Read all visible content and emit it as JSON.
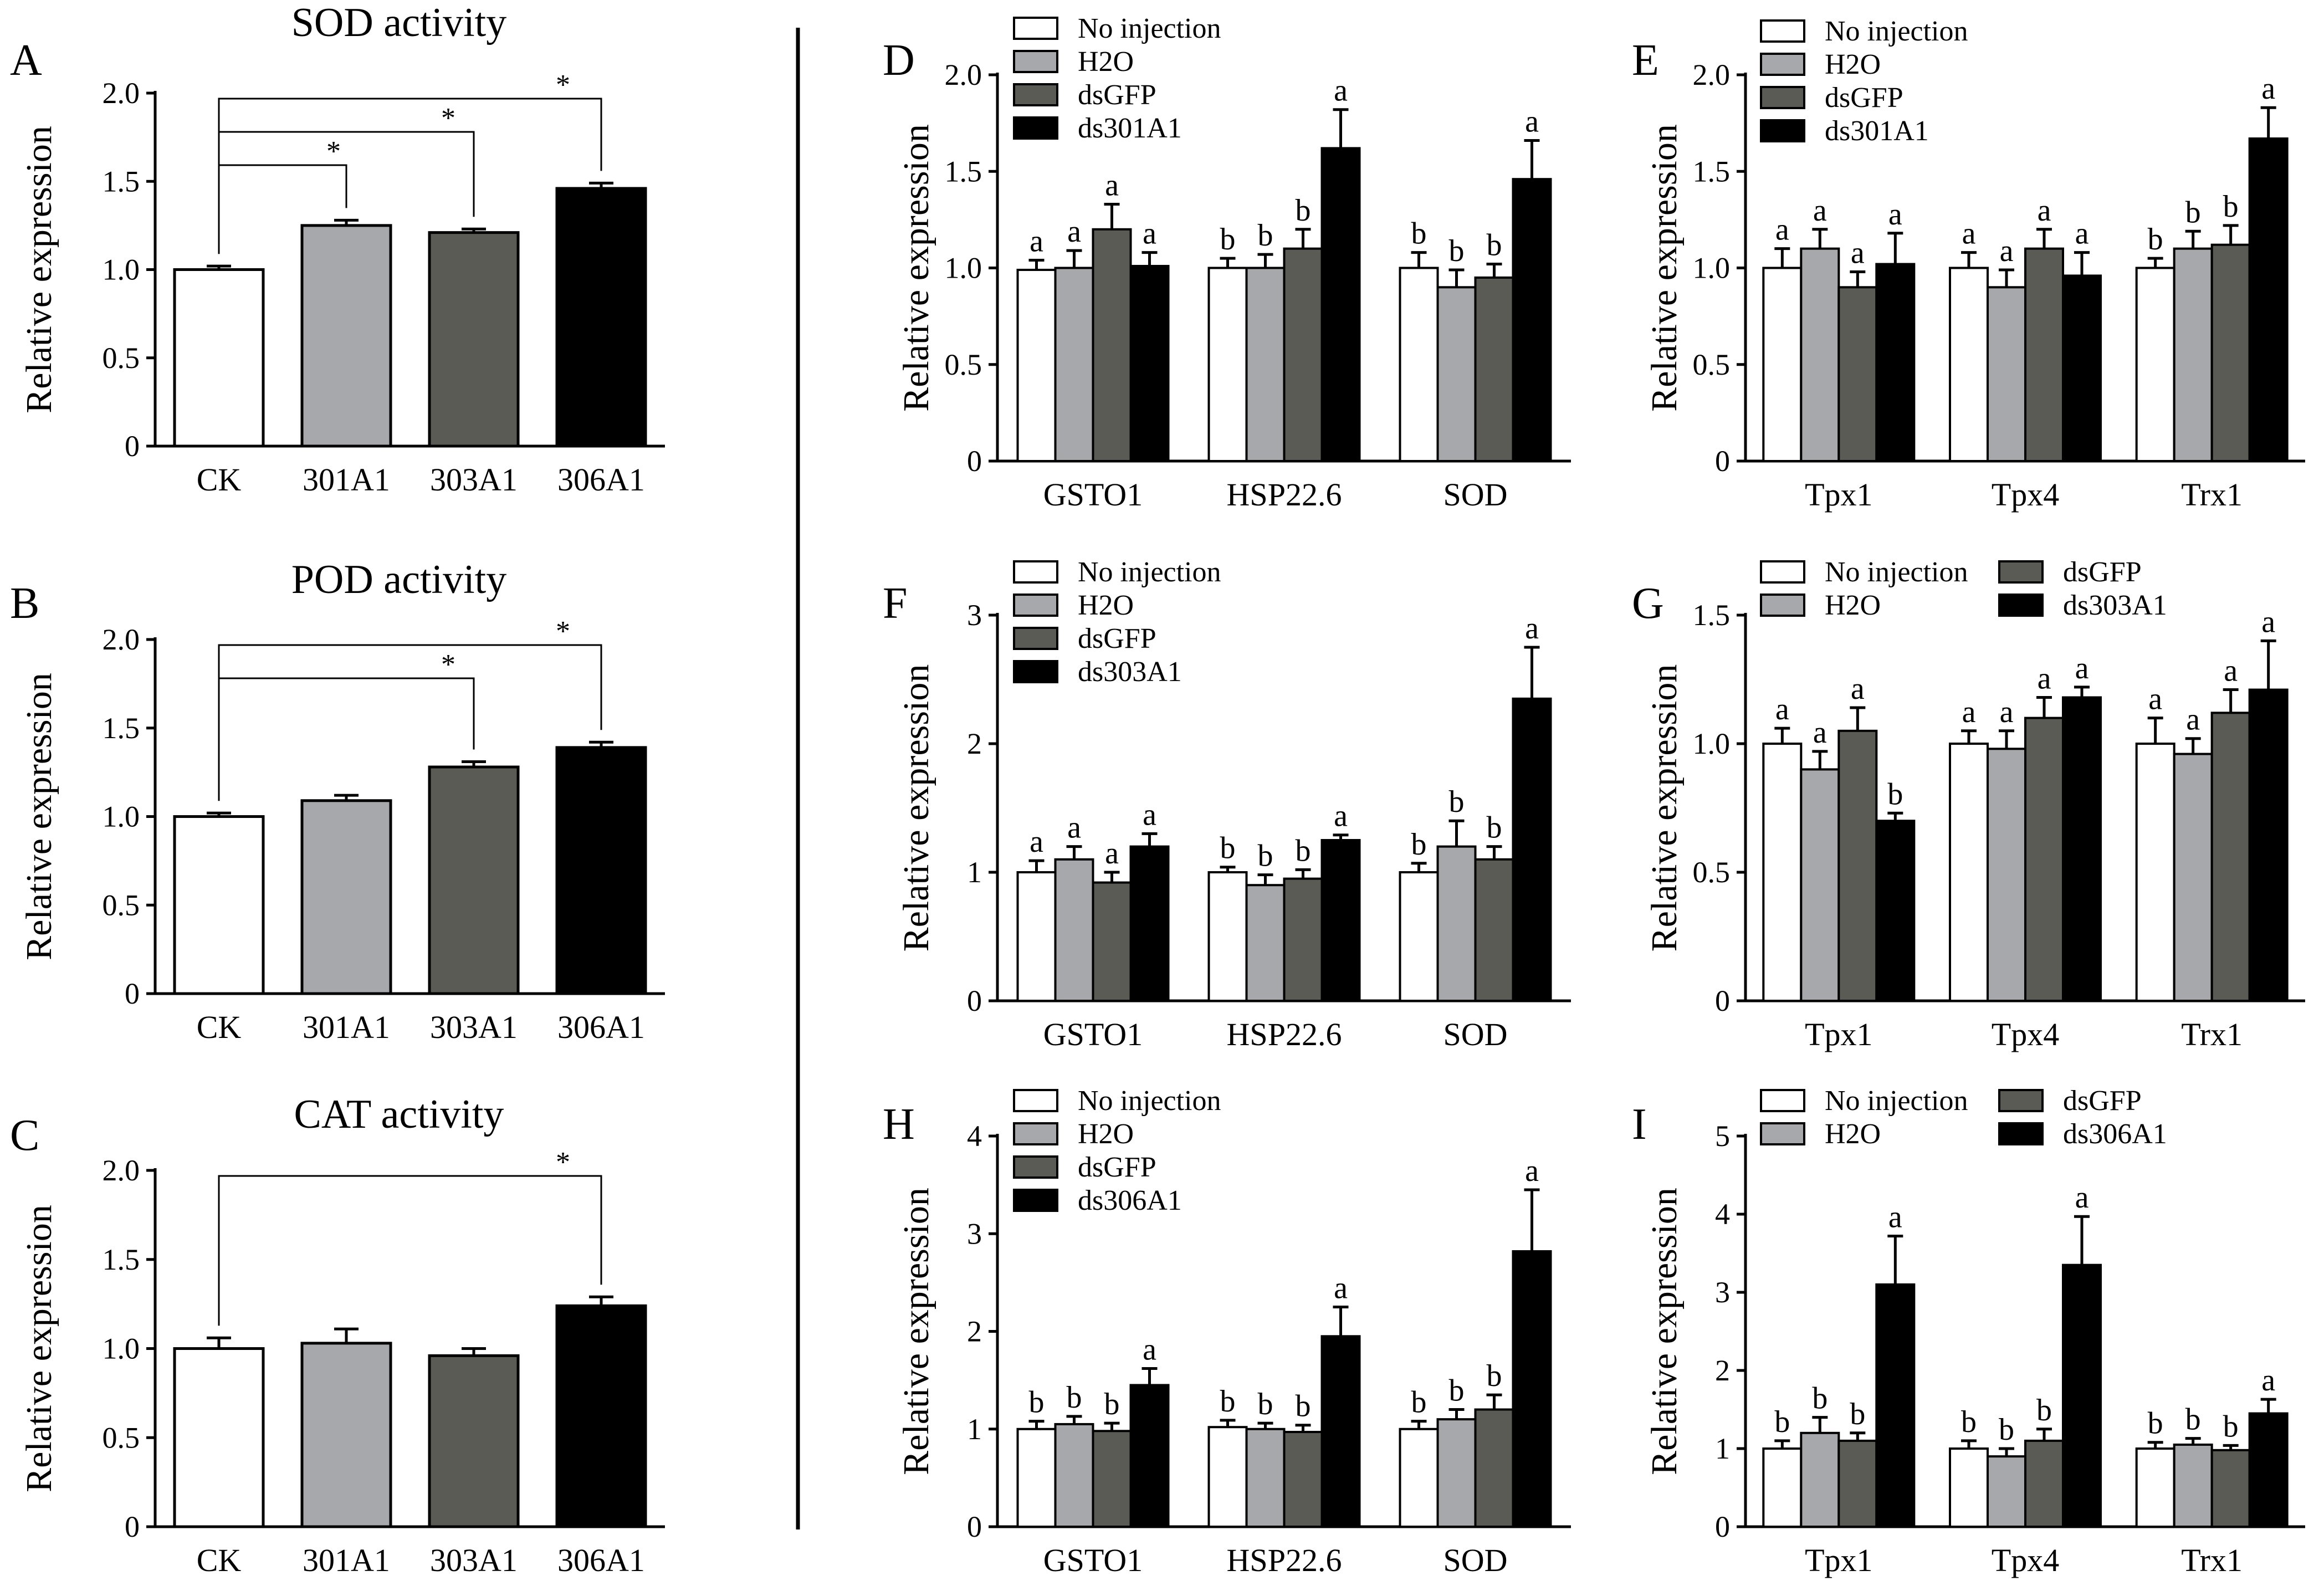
{
  "colors": {
    "no_injection": "#ffffff",
    "h2o": "#a7a8ac",
    "dsgfp": "#5b5b55",
    "dsrna": "#000000",
    "axis": "#000000",
    "ck": "#ffffff",
    "a301": "#a7a8ac",
    "a303": "#5b5b55",
    "a306": "#000000"
  },
  "chart_data": [
    {
      "id": "A",
      "type": "bar",
      "title": "SOD activity",
      "ylabel": "Relative expression",
      "ylim": [
        0,
        2.0
      ],
      "yticks": [
        0,
        0.5,
        1.0,
        1.5,
        2.0
      ],
      "ytick_labels": [
        "0",
        "0.5",
        "1.0",
        "1.5",
        "2.0"
      ],
      "categories": [
        "CK",
        "301A1",
        "303A1",
        "306A1"
      ],
      "values": [
        1.0,
        1.25,
        1.21,
        1.46
      ],
      "errors": [
        0.02,
        0.03,
        0.02,
        0.03
      ],
      "significance": [
        {
          "from": 0,
          "to": 1,
          "label": "*"
        },
        {
          "from": 0,
          "to": 2,
          "label": "*"
        },
        {
          "from": 0,
          "to": 3,
          "label": "*"
        }
      ]
    },
    {
      "id": "B",
      "type": "bar",
      "title": "POD activity",
      "ylabel": "Relative expression",
      "ylim": [
        0,
        2.0
      ],
      "yticks": [
        0,
        0.5,
        1.0,
        1.5,
        2.0
      ],
      "ytick_labels": [
        "0",
        "0.5",
        "1.0",
        "1.5",
        "2.0"
      ],
      "categories": [
        "CK",
        "301A1",
        "303A1",
        "306A1"
      ],
      "values": [
        1.0,
        1.09,
        1.28,
        1.39
      ],
      "errors": [
        0.02,
        0.03,
        0.03,
        0.03
      ],
      "significance": [
        {
          "from": 0,
          "to": 2,
          "label": "*"
        },
        {
          "from": 0,
          "to": 3,
          "label": "*"
        }
      ]
    },
    {
      "id": "C",
      "type": "bar",
      "title": "CAT activity",
      "ylabel": "Relative expression",
      "ylim": [
        0,
        2.0
      ],
      "yticks": [
        0,
        0.5,
        1.0,
        1.5,
        2.0
      ],
      "ytick_labels": [
        "0",
        "0.5",
        "1.0",
        "1.5",
        "2.0"
      ],
      "categories": [
        "CK",
        "301A1",
        "303A1",
        "306A1"
      ],
      "values": [
        1.0,
        1.03,
        0.96,
        1.24
      ],
      "errors": [
        0.06,
        0.08,
        0.04,
        0.05
      ],
      "significance": [
        {
          "from": 0,
          "to": 3,
          "label": "*"
        }
      ]
    },
    {
      "id": "D",
      "type": "bar",
      "ylabel": "Relative expression",
      "ylim": [
        0,
        2.0
      ],
      "yticks": [
        0,
        0.5,
        1.0,
        1.5,
        2.0
      ],
      "ytick_labels": [
        "0",
        "0.5",
        "1.0",
        "1.5",
        "2.0"
      ],
      "categories": [
        "GSTO1",
        "HSP22.6",
        "SOD"
      ],
      "legend": [
        "No injection",
        "H2O",
        "dsGFP",
        "ds301A1"
      ],
      "series": [
        {
          "name": "No injection",
          "values": [
            0.99,
            1.0,
            1.0
          ],
          "errors": [
            0.05,
            0.05,
            0.08
          ],
          "labels": [
            "a",
            "b",
            "b"
          ]
        },
        {
          "name": "H2O",
          "values": [
            1.0,
            1.0,
            0.9
          ],
          "errors": [
            0.09,
            0.07,
            0.09
          ],
          "labels": [
            "a",
            "b",
            "b"
          ]
        },
        {
          "name": "dsGFP",
          "values": [
            1.2,
            1.1,
            0.95
          ],
          "errors": [
            0.13,
            0.1,
            0.07
          ],
          "labels": [
            "a",
            "b",
            "b"
          ]
        },
        {
          "name": "ds301A1",
          "values": [
            1.01,
            1.62,
            1.46
          ],
          "errors": [
            0.07,
            0.2,
            0.2
          ],
          "labels": [
            "a",
            "a",
            "a"
          ]
        }
      ]
    },
    {
      "id": "E",
      "type": "bar",
      "ylabel": "Relative expression",
      "ylim": [
        0,
        2.0
      ],
      "yticks": [
        0,
        0.5,
        1.0,
        1.5,
        2.0
      ],
      "ytick_labels": [
        "0",
        "0.5",
        "1.0",
        "1.5",
        "2.0"
      ],
      "categories": [
        "Tpx1",
        "Tpx4",
        "Trx1"
      ],
      "legend": [
        "No injection",
        "H2O",
        "dsGFP",
        "ds301A1"
      ],
      "series": [
        {
          "name": "No injection",
          "values": [
            1.0,
            1.0,
            1.0
          ],
          "errors": [
            0.1,
            0.08,
            0.05
          ],
          "labels": [
            "a",
            "a",
            "b"
          ]
        },
        {
          "name": "H2O",
          "values": [
            1.1,
            0.9,
            1.1
          ],
          "errors": [
            0.1,
            0.09,
            0.09
          ],
          "labels": [
            "a",
            "a",
            "b"
          ]
        },
        {
          "name": "dsGFP",
          "values": [
            0.9,
            1.1,
            1.12
          ],
          "errors": [
            0.08,
            0.1,
            0.1
          ],
          "labels": [
            "a",
            "a",
            "b"
          ]
        },
        {
          "name": "ds301A1",
          "values": [
            1.02,
            0.96,
            1.67
          ],
          "errors": [
            0.16,
            0.12,
            0.16
          ],
          "labels": [
            "a",
            "a",
            "a"
          ]
        }
      ]
    },
    {
      "id": "F",
      "type": "bar",
      "ylabel": "Relative expression",
      "ylim": [
        0,
        3
      ],
      "yticks": [
        0,
        1,
        2,
        3
      ],
      "ytick_labels": [
        "0",
        "1",
        "2",
        "3"
      ],
      "categories": [
        "GSTO1",
        "HSP22.6",
        "SOD"
      ],
      "legend": [
        "No injection",
        "H2O",
        "dsGFP",
        "ds303A1"
      ],
      "series": [
        {
          "name": "No injection",
          "values": [
            1.0,
            1.0,
            1.0
          ],
          "errors": [
            0.09,
            0.04,
            0.07
          ],
          "labels": [
            "a",
            "b",
            "b"
          ]
        },
        {
          "name": "H2O",
          "values": [
            1.1,
            0.9,
            1.2
          ],
          "errors": [
            0.1,
            0.08,
            0.2
          ],
          "labels": [
            "a",
            "b",
            "b"
          ]
        },
        {
          "name": "dsGFP",
          "values": [
            0.92,
            0.95,
            1.1
          ],
          "errors": [
            0.08,
            0.07,
            0.1
          ],
          "labels": [
            "a",
            "b",
            "b"
          ]
        },
        {
          "name": "ds303A1",
          "values": [
            1.2,
            1.25,
            2.35
          ],
          "errors": [
            0.1,
            0.04,
            0.4
          ],
          "labels": [
            "a",
            "a",
            "a"
          ]
        }
      ]
    },
    {
      "id": "G",
      "type": "bar",
      "ylabel": "Relative expression",
      "ylim": [
        0,
        1.5
      ],
      "yticks": [
        0,
        0.5,
        1.0,
        1.5
      ],
      "ytick_labels": [
        "0",
        "0.5",
        "1.0",
        "1.5"
      ],
      "categories": [
        "Tpx1",
        "Tpx4",
        "Trx1"
      ],
      "legend": [
        "No injection",
        "H2O",
        "dsGFP",
        "ds303A1"
      ],
      "series": [
        {
          "name": "No injection",
          "values": [
            1.0,
            1.0,
            1.0
          ],
          "errors": [
            0.06,
            0.05,
            0.1
          ],
          "labels": [
            "a",
            "a",
            "a"
          ]
        },
        {
          "name": "H2O",
          "values": [
            0.9,
            0.98,
            0.96
          ],
          "errors": [
            0.07,
            0.07,
            0.06
          ],
          "labels": [
            "a",
            "a",
            "a"
          ]
        },
        {
          "name": "dsGFP",
          "values": [
            1.05,
            1.1,
            1.12
          ],
          "errors": [
            0.09,
            0.08,
            0.09
          ],
          "labels": [
            "a",
            "a",
            "a"
          ]
        },
        {
          "name": "ds303A1",
          "values": [
            0.7,
            1.18,
            1.21
          ],
          "errors": [
            0.03,
            0.04,
            0.19
          ],
          "labels": [
            "b",
            "a",
            "a"
          ]
        }
      ]
    },
    {
      "id": "H",
      "type": "bar",
      "ylabel": "Relative expression",
      "ylim": [
        0,
        4
      ],
      "yticks": [
        0,
        1,
        2,
        3,
        4
      ],
      "ytick_labels": [
        "0",
        "1",
        "2",
        "3",
        "4"
      ],
      "categories": [
        "GSTO1",
        "HSP22.6",
        "SOD"
      ],
      "legend": [
        "No injection",
        "H2O",
        "dsGFP",
        "ds306A1"
      ],
      "series": [
        {
          "name": "No injection",
          "values": [
            1.0,
            1.02,
            1.0
          ],
          "errors": [
            0.08,
            0.07,
            0.08
          ],
          "labels": [
            "b",
            "b",
            "b"
          ]
        },
        {
          "name": "H2O",
          "values": [
            1.05,
            1.0,
            1.1
          ],
          "errors": [
            0.08,
            0.06,
            0.1
          ],
          "labels": [
            "b",
            "b",
            "b"
          ]
        },
        {
          "name": "dsGFP",
          "values": [
            0.98,
            0.97,
            1.2
          ],
          "errors": [
            0.08,
            0.07,
            0.15
          ],
          "labels": [
            "b",
            "b",
            "b"
          ]
        },
        {
          "name": "ds306A1",
          "values": [
            1.45,
            1.95,
            2.82
          ],
          "errors": [
            0.17,
            0.3,
            0.63
          ],
          "labels": [
            "a",
            "a",
            "a"
          ]
        }
      ]
    },
    {
      "id": "I",
      "type": "bar",
      "ylabel": "Relative expression",
      "ylim": [
        0,
        5
      ],
      "yticks": [
        0,
        1,
        2,
        3,
        4,
        5
      ],
      "ytick_labels": [
        "0",
        "1",
        "2",
        "3",
        "4",
        "5"
      ],
      "categories": [
        "Tpx1",
        "Tpx4",
        "Trx1"
      ],
      "legend": [
        "No injection",
        "H2O",
        "dsGFP",
        "ds306A1"
      ],
      "series": [
        {
          "name": "No injection",
          "values": [
            1.0,
            1.0,
            1.0
          ],
          "errors": [
            0.1,
            0.1,
            0.08
          ],
          "labels": [
            "b",
            "b",
            "b"
          ]
        },
        {
          "name": "H2O",
          "values": [
            1.2,
            0.9,
            1.05
          ],
          "errors": [
            0.2,
            0.1,
            0.08
          ],
          "labels": [
            "b",
            "b",
            "b"
          ]
        },
        {
          "name": "dsGFP",
          "values": [
            1.1,
            1.1,
            0.98
          ],
          "errors": [
            0.1,
            0.15,
            0.06
          ],
          "labels": [
            "b",
            "b",
            "b"
          ]
        },
        {
          "name": "ds306A1",
          "values": [
            3.1,
            3.35,
            1.45
          ],
          "errors": [
            0.62,
            0.62,
            0.18
          ],
          "labels": [
            "a",
            "a",
            "a"
          ]
        }
      ]
    }
  ]
}
